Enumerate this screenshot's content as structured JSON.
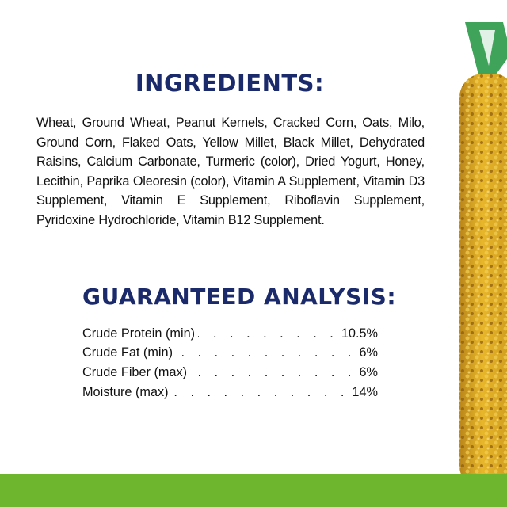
{
  "ingredients": {
    "title": "INGREDIENTS:",
    "text": "Wheat, Ground Wheat, Peanut Kernels, Cracked Corn, Oats, Milo, Ground Corn, Flaked Oats, Yellow Millet, Black Millet, Dehydrated Raisins, Calcium Carbonate, Turmeric (color), Dried Yogurt, Honey, Lecithin, Paprika Oleoresin (color), Vitamin A Supplement, Vitamin D3 Supplement, Vitamin E Supplement, Riboflavin Supplement, Pyridoxine Hydrochloride, Vitamin B12 Supplement."
  },
  "analysis": {
    "title": "GUARANTEED ANALYSIS:",
    "rows": [
      {
        "label": "Crude Protein (min)",
        "value": "10.5%"
      },
      {
        "label": "Crude Fat (min)",
        "value": "6%"
      },
      {
        "label": "Crude Fiber (max)",
        "value": "6%"
      },
      {
        "label": "Moisture (max)",
        "value": "14%"
      }
    ]
  },
  "colors": {
    "title": "#1b2a6b",
    "bar": "#6db62e",
    "treat": "#d9a520",
    "hanger": "#3fa35a"
  }
}
